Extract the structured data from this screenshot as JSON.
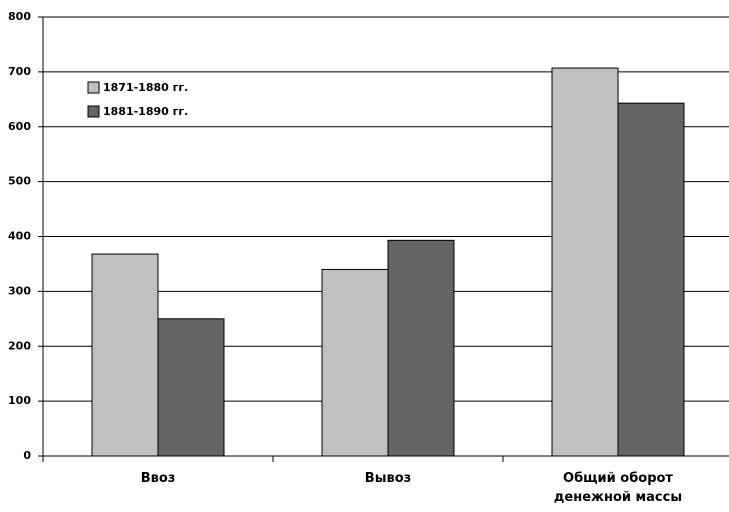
{
  "chart_data": {
    "type": "bar",
    "categories": [
      "Ввоз",
      "Вывоз",
      "Общий оборот денежной массы"
    ],
    "series": [
      {
        "name": "1871-1880 гг.",
        "color": "#c0c0c0",
        "values": [
          368,
          340,
          707
        ]
      },
      {
        "name": "1881-1890 гг.",
        "color": "#646464",
        "values": [
          250,
          393,
          643
        ]
      }
    ],
    "ylim": [
      0,
      800
    ],
    "yticks": [
      0,
      100,
      200,
      300,
      400,
      500,
      600,
      700,
      800
    ],
    "grid": true,
    "legend": "upper left"
  }
}
